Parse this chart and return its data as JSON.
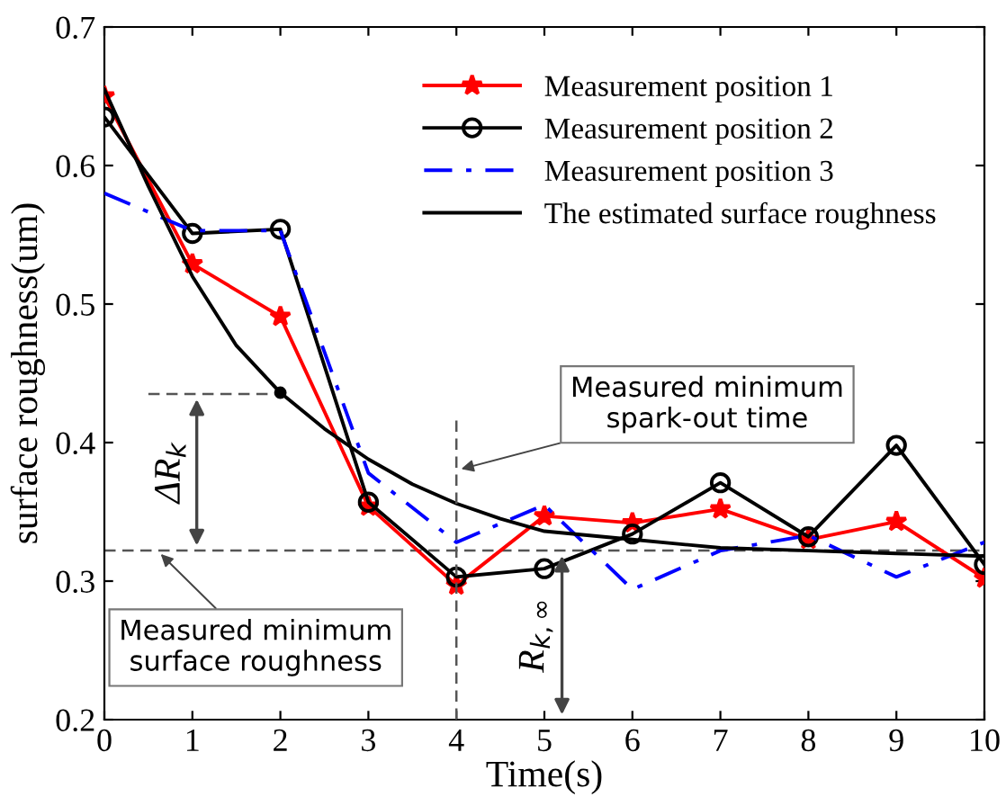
{
  "chart_data": {
    "type": "line",
    "xlabel": "Time(s)",
    "ylabel": "surface roughness(um)",
    "x": [
      0,
      1,
      2,
      3,
      4,
      5,
      6,
      7,
      8,
      9,
      10
    ],
    "xlim": [
      0,
      10
    ],
    "xticks": [
      0,
      1,
      2,
      3,
      4,
      5,
      6,
      7,
      8,
      9,
      10
    ],
    "ylim": [
      0.2,
      0.7
    ],
    "yticks": [
      0.2,
      0.3,
      0.4,
      0.5,
      0.6,
      0.7
    ],
    "grid": false,
    "legend": "top right",
    "series": [
      {
        "name": "Measurement position 1",
        "color": "#ff0000",
        "marker": "star",
        "line_style": "solid",
        "values": [
          0.65,
          0.529,
          0.491,
          0.354,
          0.297,
          0.347,
          0.342,
          0.352,
          0.33,
          0.343,
          0.302
        ]
      },
      {
        "name": "Measurement position 2",
        "color": "#000000",
        "marker": "circle",
        "line_style": "solid",
        "values": [
          0.635,
          0.551,
          0.554,
          0.357,
          0.303,
          0.309,
          0.334,
          0.371,
          0.332,
          0.398,
          0.312
        ]
      },
      {
        "name": "Measurement position 3",
        "color": "#0000ff",
        "marker": "none",
        "line_style": "dashdot",
        "values": [
          0.58,
          0.553,
          0.553,
          0.378,
          0.328,
          0.355,
          0.294,
          0.322,
          0.333,
          0.303,
          0.328
        ]
      },
      {
        "name": "The estimated surface roughness",
        "color": "#000000",
        "marker": "none",
        "line_style": "solid",
        "x": [
          0,
          0.5,
          1,
          1.5,
          2,
          2.5,
          3,
          3.5,
          4,
          4.5,
          5,
          6,
          7,
          8,
          9,
          10
        ],
        "values": [
          0.655,
          0.585,
          0.52,
          0.47,
          0.436,
          0.41,
          0.388,
          0.37,
          0.356,
          0.345,
          0.336,
          0.33,
          0.324,
          0.322,
          0.32,
          0.318
        ]
      },
      {
        "type": "scatter",
        "color": "#000000",
        "marker": "circle",
        "x": [
          2
        ],
        "values": [
          0.436
        ]
      },
      {
        "color": "#555555",
        "marker": "none",
        "line_style": "dashed",
        "x": [
          0.5,
          2
        ],
        "values": [
          0.435,
          0.435
        ]
      },
      {
        "color": "#555555",
        "marker": "none",
        "line_style": "dashed",
        "x": [
          4,
          4
        ],
        "values": [
          0.2,
          0.416
        ]
      }
    ],
    "ref_lines": [
      {
        "axis": "y",
        "value": 0.322,
        "color": "#555555",
        "line_style": "dashed"
      }
    ],
    "annotations": [
      {
        "text": "ΔR$_{k}$",
        "x": 1.05,
        "y": 0.435
      },
      {
        "text": "R$_{k,∞}$",
        "x": 5.2,
        "y": 0.322
      },
      {
        "text": "Measured minimum\nspark-out time",
        "x": 4,
        "y": 0.38
      },
      {
        "text": "Measured minimum\nsurface roughness",
        "x": 0.6,
        "y": 0.322
      }
    ]
  }
}
